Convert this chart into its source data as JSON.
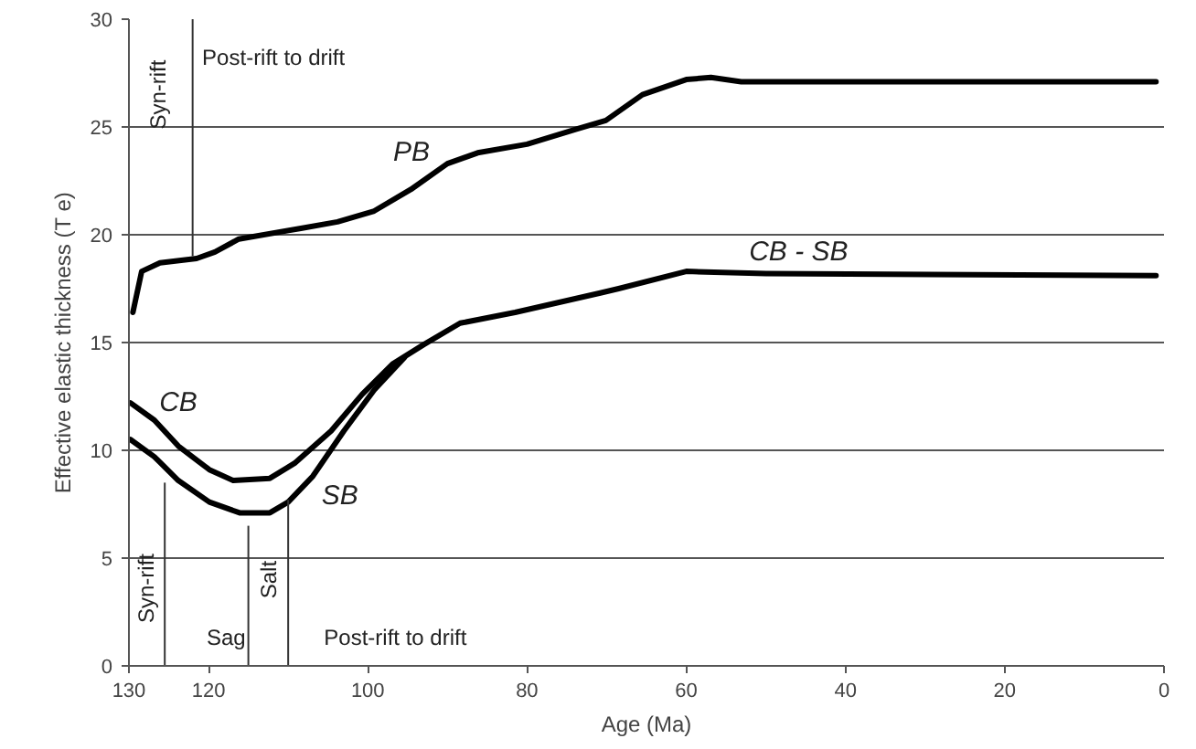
{
  "chart_data": {
    "type": "line",
    "xlabel": "Age (Ma)",
    "ylabel": "Effective elastic thickness (T e)",
    "xlim": [
      130,
      0
    ],
    "ylim": [
      0,
      30
    ],
    "xticks": [
      130,
      120,
      100,
      80,
      60,
      40,
      20,
      0
    ],
    "yticks": [
      0,
      5,
      10,
      15,
      20,
      25,
      30
    ],
    "grid": "y",
    "line_style": "solid",
    "marker": "none",
    "series": [
      {
        "name": "PB",
        "color": "#000000",
        "x": [
          129.5,
          128.4,
          126.1,
          121.5,
          119.2,
          116.2,
          108.4,
          103.8,
          99.2,
          94.6,
          90,
          86.2,
          80,
          73.8,
          70.1,
          65.5,
          60,
          56.9,
          53.1,
          1
        ],
        "values": [
          16.4,
          18.3,
          18.7,
          18.9,
          19.2,
          19.8,
          20.3,
          20.6,
          21.1,
          22.1,
          23.3,
          23.8,
          24.2,
          24.9,
          25.3,
          26.5,
          27.2,
          27.3,
          27.1,
          27.1
        ]
      },
      {
        "name": "CB",
        "color": "#000000",
        "x": [
          129.8,
          126.8,
          123.8,
          119.9,
          116.9,
          112.3,
          109.2,
          104.6,
          100.7,
          96.9,
          93,
          88.4,
          81.5,
          70.8,
          68.5,
          60,
          50,
          1
        ],
        "values": [
          12.2,
          11.4,
          10.2,
          9.1,
          8.6,
          8.7,
          9.4,
          10.9,
          12.6,
          14,
          14.9,
          15.9,
          16.4,
          17.3,
          17.5,
          18.3,
          18.2,
          18.1
        ]
      },
      {
        "name": "SB",
        "color": "#000000",
        "x": [
          129.8,
          126.8,
          123.8,
          119.9,
          116.1,
          112.3,
          110,
          106.9,
          103,
          99.2,
          95.4
        ],
        "values": [
          10.5,
          9.7,
          8.6,
          7.6,
          7.1,
          7.1,
          7.6,
          8.8,
          10.9,
          12.8,
          14.3
        ]
      }
    ],
    "ref_lines": [
      {
        "axis": "x",
        "value": 122
      },
      {
        "axis": "x",
        "value": 125.5
      },
      {
        "axis": "x",
        "value": 110
      },
      {
        "axis": "x",
        "value": 115
      }
    ],
    "annotations": [
      "Syn-rift",
      "Post-rift to drift",
      "Syn-rift",
      "Sag",
      "Salt",
      "Post-rift to drift",
      "CB - SB"
    ]
  }
}
